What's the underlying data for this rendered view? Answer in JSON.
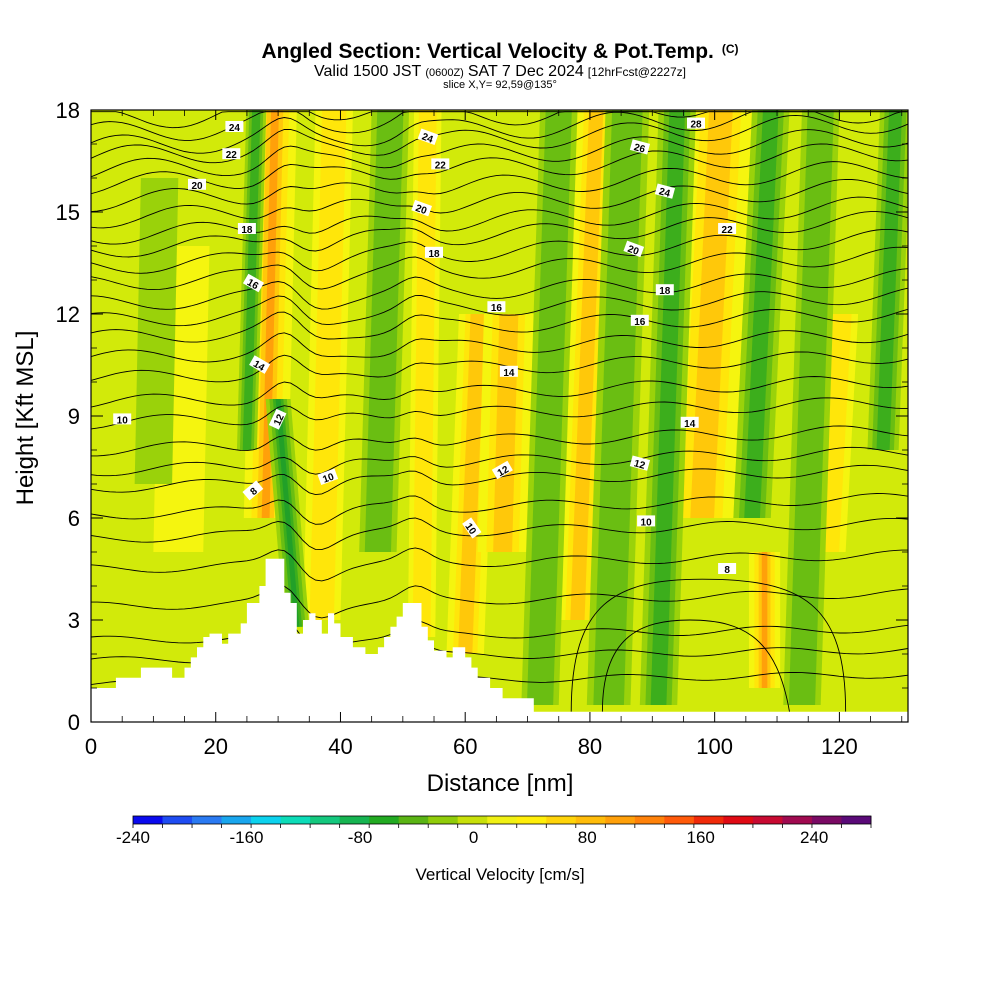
{
  "chart_data": {
    "type": "heatmap",
    "title": "Angled Section: Vertical Velocity & Pot.Temp.",
    "title_mark": "(C)",
    "subtitle": {
      "valid": "Valid 1500 JST",
      "utc": "(0600Z)",
      "date": "SAT 7 Dec 2024",
      "forecast": "[12hrFcst@2227z]"
    },
    "slice_label": "slice X,Y= 92,59@135°",
    "xlabel": "Distance [nm]",
    "ylabel": "Height [Kft MSL]",
    "xlim": [
      0,
      131
    ],
    "ylim": [
      0,
      18
    ],
    "x_ticks": [
      "0",
      "20",
      "40",
      "60",
      "80",
      "100",
      "120"
    ],
    "y_ticks": [
      "0",
      "3",
      "6",
      "9",
      "12",
      "15",
      "18"
    ],
    "colorbar": {
      "label": "Vertical Velocity [cm/s]",
      "range": [
        -240,
        280
      ],
      "tick_labels": [
        "-240",
        "-160",
        "-80",
        "0",
        "80",
        "160",
        "240"
      ],
      "colors": [
        "#0a0aee",
        "#1e4cf2",
        "#2a7af2",
        "#19a6ee",
        "#0cd2ee",
        "#0cdcb8",
        "#14c87e",
        "#16b451",
        "#22aa22",
        "#5ab414",
        "#90cc0a",
        "#c8e00a",
        "#f0f014",
        "#ffee0a",
        "#ffd40a",
        "#ffbc0a",
        "#ffa00a",
        "#ff820a",
        "#ff5a0a",
        "#f02a0a",
        "#e00a14",
        "#c80a32",
        "#a00a50",
        "#7a0a64",
        "#5a0a78"
      ]
    },
    "terrain": [
      [
        0,
        1.0
      ],
      [
        4,
        1.0
      ],
      [
        4,
        1.3
      ],
      [
        8,
        1.3
      ],
      [
        8,
        1.6
      ],
      [
        12,
        1.6
      ],
      [
        12,
        1.6
      ],
      [
        13,
        1.6
      ],
      [
        13,
        1.3
      ],
      [
        15,
        1.3
      ],
      [
        15,
        1.6
      ],
      [
        16,
        1.6
      ],
      [
        16,
        1.9
      ],
      [
        17,
        1.9
      ],
      [
        17,
        2.2
      ],
      [
        18,
        2.2
      ],
      [
        18,
        2.5
      ],
      [
        19,
        2.5
      ],
      [
        19,
        2.6
      ],
      [
        21,
        2.6
      ],
      [
        21,
        2.3
      ],
      [
        22,
        2.3
      ],
      [
        22,
        2.6
      ],
      [
        24,
        2.6
      ],
      [
        24,
        2.9
      ],
      [
        25,
        2.9
      ],
      [
        25,
        3.5
      ],
      [
        27,
        3.5
      ],
      [
        27,
        4.0
      ],
      [
        28,
        4.0
      ],
      [
        28,
        4.8
      ],
      [
        31,
        4.8
      ],
      [
        31,
        3.8
      ],
      [
        32,
        3.8
      ],
      [
        32,
        3.5
      ],
      [
        33,
        3.5
      ],
      [
        33,
        2.6
      ],
      [
        34,
        2.6
      ],
      [
        34,
        3.0
      ],
      [
        35,
        3.0
      ],
      [
        35,
        3.2
      ],
      [
        36,
        3.2
      ],
      [
        36,
        3.0
      ],
      [
        37,
        3.0
      ],
      [
        37,
        2.6
      ],
      [
        38,
        2.6
      ],
      [
        38,
        3.2
      ],
      [
        39,
        3.2
      ],
      [
        39,
        2.9
      ],
      [
        40,
        2.9
      ],
      [
        40,
        2.5
      ],
      [
        42,
        2.5
      ],
      [
        42,
        2.2
      ],
      [
        44,
        2.2
      ],
      [
        44,
        2.0
      ],
      [
        46,
        2.0
      ],
      [
        46,
        2.2
      ],
      [
        47,
        2.2
      ],
      [
        47,
        2.5
      ],
      [
        48,
        2.5
      ],
      [
        48,
        2.8
      ],
      [
        49,
        2.8
      ],
      [
        49,
        3.1
      ],
      [
        50,
        3.1
      ],
      [
        50,
        3.5
      ],
      [
        53,
        3.5
      ],
      [
        53,
        2.8
      ],
      [
        54,
        2.8
      ],
      [
        54,
        2.4
      ],
      [
        55,
        2.4
      ],
      [
        55,
        2.1
      ],
      [
        57,
        2.1
      ],
      [
        57,
        1.9
      ],
      [
        58,
        1.9
      ],
      [
        58,
        2.2
      ],
      [
        60,
        2.2
      ],
      [
        60,
        1.9
      ],
      [
        61,
        1.9
      ],
      [
        61,
        1.6
      ],
      [
        62,
        1.6
      ],
      [
        62,
        1.3
      ],
      [
        64,
        1.3
      ],
      [
        64,
        1.0
      ],
      [
        66,
        1.0
      ],
      [
        66,
        0.7
      ],
      [
        71,
        0.7
      ],
      [
        71,
        0.3
      ],
      [
        131,
        0.3
      ]
    ],
    "theta_contour_labels": [
      {
        "x": 23,
        "y": 17.5,
        "text": "24",
        "angle": 0
      },
      {
        "x": 22.5,
        "y": 16.7,
        "text": "22",
        "angle": 0
      },
      {
        "x": 17,
        "y": 15.8,
        "text": "20",
        "angle": 0
      },
      {
        "x": 25,
        "y": 14.5,
        "text": "18",
        "angle": 0
      },
      {
        "x": 26,
        "y": 12.9,
        "text": "16",
        "angle": 30
      },
      {
        "x": 27,
        "y": 10.5,
        "text": "14",
        "angle": 30
      },
      {
        "x": 30,
        "y": 8.9,
        "text": "12",
        "angle": -65
      },
      {
        "x": 26,
        "y": 6.8,
        "text": "8",
        "angle": -40
      },
      {
        "x": 5,
        "y": 8.9,
        "text": "10",
        "angle": 0
      },
      {
        "x": 38,
        "y": 7.2,
        "text": "10",
        "angle": -20
      },
      {
        "x": 54,
        "y": 17.2,
        "text": "24",
        "angle": 20
      },
      {
        "x": 56,
        "y": 16.4,
        "text": "22",
        "angle": 0
      },
      {
        "x": 53,
        "y": 15.1,
        "text": "20",
        "angle": 20
      },
      {
        "x": 55,
        "y": 13.8,
        "text": "18",
        "angle": 0
      },
      {
        "x": 65,
        "y": 12.2,
        "text": "16",
        "angle": 0
      },
      {
        "x": 67,
        "y": 10.3,
        "text": "14",
        "angle": 0
      },
      {
        "x": 66,
        "y": 7.4,
        "text": "12",
        "angle": -30
      },
      {
        "x": 61,
        "y": 5.7,
        "text": "10",
        "angle": 55
      },
      {
        "x": 97,
        "y": 17.6,
        "text": "28",
        "angle": 0
      },
      {
        "x": 88,
        "y": 16.9,
        "text": "26",
        "angle": 15
      },
      {
        "x": 92,
        "y": 15.6,
        "text": "24",
        "angle": 15
      },
      {
        "x": 87,
        "y": 13.9,
        "text": "20",
        "angle": 20
      },
      {
        "x": 92,
        "y": 12.7,
        "text": "18",
        "angle": 0
      },
      {
        "x": 88,
        "y": 11.8,
        "text": "16",
        "angle": 0
      },
      {
        "x": 96,
        "y": 8.8,
        "text": "14",
        "angle": 0
      },
      {
        "x": 88,
        "y": 7.6,
        "text": "12",
        "angle": 15
      },
      {
        "x": 89,
        "y": 5.9,
        "text": "10",
        "angle": 0
      },
      {
        "x": 102,
        "y": 14.5,
        "text": "22",
        "angle": 0
      },
      {
        "x": 102,
        "y": 4.5,
        "text": "8",
        "angle": 0
      }
    ],
    "theta_contours_left": [
      1.1,
      1.8,
      2.4,
      3.4,
      4.5,
      5.4,
      6.1,
      6.9,
      7.4,
      8.0,
      8.8,
      9.4,
      10.1,
      10.7,
      11.3,
      11.8,
      12.3,
      12.9,
      13.4,
      13.9,
      14.3,
      14.8,
      15.3,
      15.8,
      16.2,
      16.6,
      16.9,
      17.3,
      17.7
    ],
    "updraft_bands": [
      {
        "x": 28,
        "w": 3.5,
        "ybot": 6.0,
        "ytop": 18,
        "strength": 0.9,
        "lean": 1.5
      },
      {
        "x": 37,
        "w": 3.0,
        "ybot": 3.0,
        "ytop": 18,
        "strength": 0.5,
        "lean": 2.0
      },
      {
        "x": 53,
        "w": 2.2,
        "ybot": 2.5,
        "ytop": 18,
        "strength": 0.6,
        "lean": 1.0
      },
      {
        "x": 60,
        "w": 3.0,
        "ybot": 2.0,
        "ytop": 12,
        "strength": 0.8,
        "lean": 2.0
      },
      {
        "x": 66,
        "w": 4.0,
        "ybot": 5.0,
        "ytop": 12,
        "strength": 0.8,
        "lean": 1.0
      },
      {
        "x": 78,
        "w": 3.0,
        "ybot": 3.0,
        "ytop": 18,
        "strength": 0.7,
        "lean": 3.0
      },
      {
        "x": 98,
        "w": 5.0,
        "ybot": 6.0,
        "ytop": 18,
        "strength": 0.7,
        "lean": 3.0
      },
      {
        "x": 108,
        "w": 2.5,
        "ybot": 1.0,
        "ytop": 5.0,
        "strength": 0.9,
        "lean": 0.0
      },
      {
        "x": 14,
        "w": 4.0,
        "ybot": 5.0,
        "ytop": 14,
        "strength": 0.35,
        "lean": 1.0
      },
      {
        "x": 118,
        "w": 3.0,
        "ybot": 5.0,
        "ytop": 12,
        "strength": 0.4,
        "lean": 2.0
      }
    ],
    "downdraft_bands": [
      {
        "x": 25,
        "w": 1.6,
        "ybot": 8.0,
        "ytop": 18,
        "strength": 0.8,
        "lean": 1.5
      },
      {
        "x": 33,
        "w": 2.0,
        "ybot": 2.8,
        "ytop": 9.5,
        "strength": 1.0,
        "lean": -3.0
      },
      {
        "x": 46,
        "w": 3.0,
        "ybot": 5.0,
        "ytop": 18,
        "strength": 0.5,
        "lean": 2.0
      },
      {
        "x": 72,
        "w": 3.0,
        "ybot": 0.5,
        "ytop": 18,
        "strength": 0.6,
        "lean": 3.0
      },
      {
        "x": 83,
        "w": 3.5,
        "ybot": 0.5,
        "ytop": 18,
        "strength": 0.6,
        "lean": 3.0
      },
      {
        "x": 91,
        "w": 3.0,
        "ybot": 0.5,
        "ytop": 18,
        "strength": 0.7,
        "lean": 3.0
      },
      {
        "x": 106,
        "w": 3.0,
        "ybot": 6.0,
        "ytop": 18,
        "strength": 0.8,
        "lean": 3.0
      },
      {
        "x": 114,
        "w": 3.0,
        "ybot": 0.5,
        "ytop": 18,
        "strength": 0.6,
        "lean": 3.0
      },
      {
        "x": 127,
        "w": 2.5,
        "ybot": 8.0,
        "ytop": 18,
        "strength": 0.7,
        "lean": 2.0
      },
      {
        "x": 10,
        "w": 3.0,
        "ybot": 7.0,
        "ytop": 16,
        "strength": 0.35,
        "lean": 1.0
      }
    ]
  }
}
